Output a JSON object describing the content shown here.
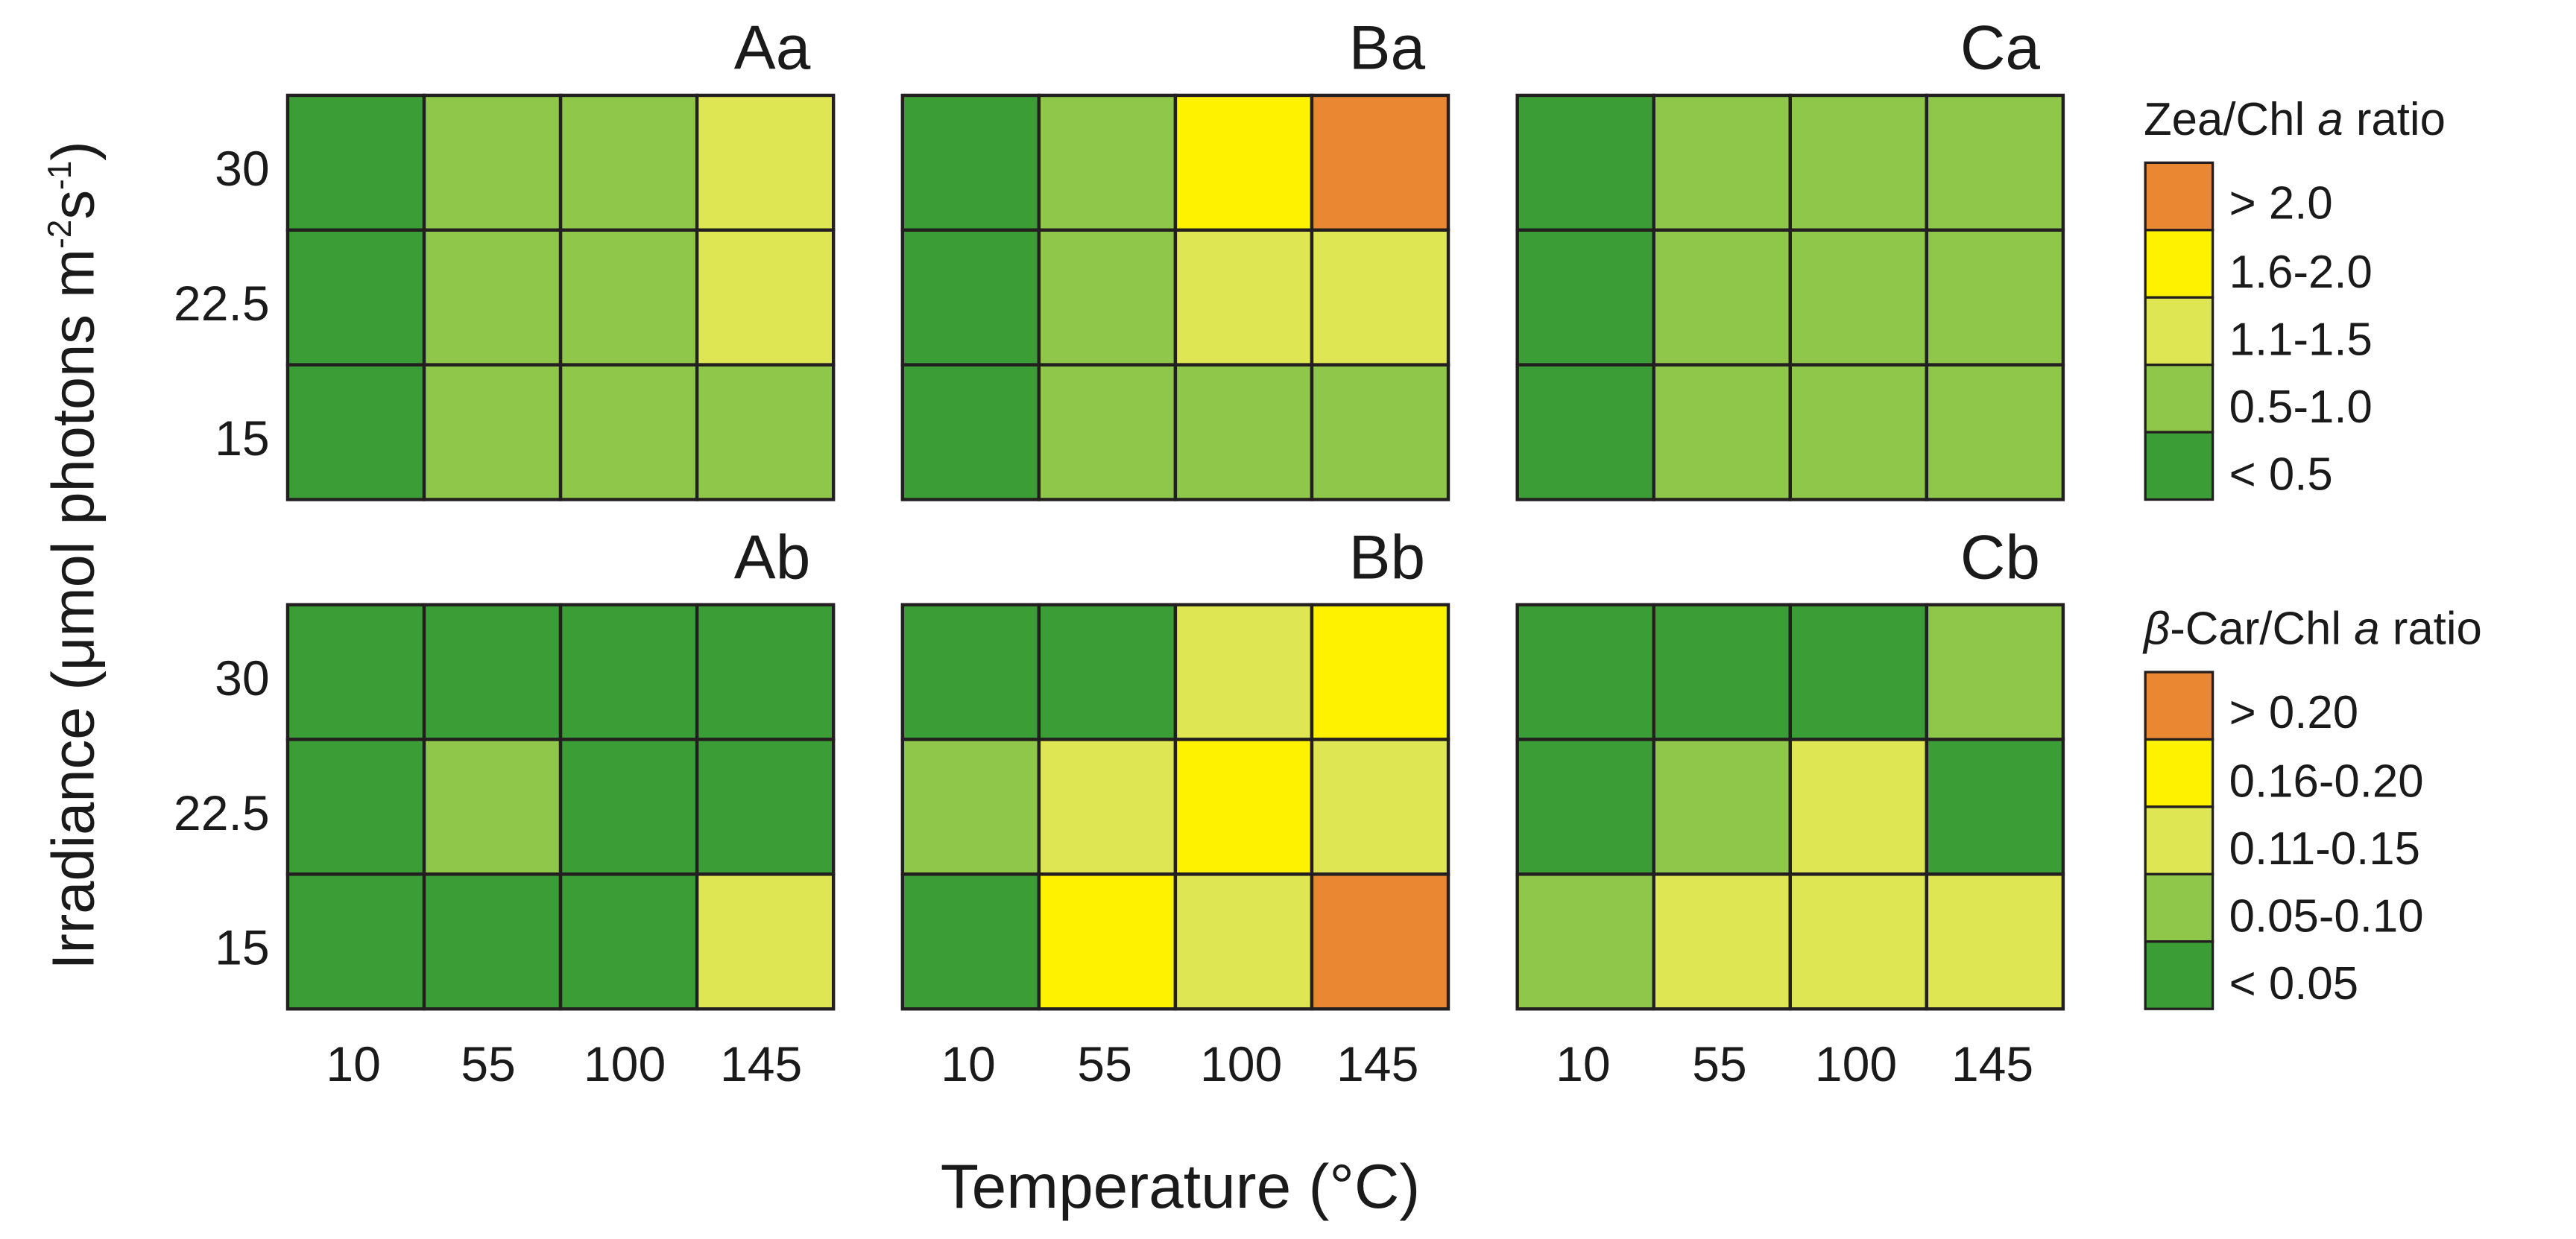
{
  "colors": {
    "level_0": "#3b9d35",
    "level_1": "#8fc74a",
    "level_2": "#dfe653",
    "level_3": "#fff200",
    "level_4": "#ea8732",
    "grid_line": "#231f20"
  },
  "chart_data": [
    {
      "type": "heatmap",
      "panel": "Aa",
      "title": "Aa",
      "x": [
        "10",
        "55",
        "100",
        "145"
      ],
      "y": [
        "30",
        "22.5",
        "15"
      ],
      "legend_group": "zea",
      "levels": [
        [
          0,
          1,
          1,
          2
        ],
        [
          0,
          1,
          1,
          2
        ],
        [
          0,
          1,
          1,
          1
        ]
      ]
    },
    {
      "type": "heatmap",
      "panel": "Ba",
      "title": "Ba",
      "x": [
        "10",
        "55",
        "100",
        "145"
      ],
      "y": [
        "30",
        "22.5",
        "15"
      ],
      "legend_group": "zea",
      "levels": [
        [
          0,
          1,
          3,
          4
        ],
        [
          0,
          1,
          2,
          2
        ],
        [
          0,
          1,
          1,
          1
        ]
      ]
    },
    {
      "type": "heatmap",
      "panel": "Ca",
      "title": "Ca",
      "x": [
        "10",
        "55",
        "100",
        "145"
      ],
      "y": [
        "30",
        "22.5",
        "15"
      ],
      "legend_group": "zea",
      "levels": [
        [
          0,
          1,
          1,
          1
        ],
        [
          0,
          1,
          1,
          1
        ],
        [
          0,
          1,
          1,
          1
        ]
      ]
    },
    {
      "type": "heatmap",
      "panel": "Ab",
      "title": "Ab",
      "x": [
        "10",
        "55",
        "100",
        "145"
      ],
      "y": [
        "30",
        "22.5",
        "15"
      ],
      "legend_group": "car",
      "levels": [
        [
          0,
          0,
          0,
          0
        ],
        [
          0,
          1,
          0,
          0
        ],
        [
          0,
          0,
          0,
          2
        ]
      ]
    },
    {
      "type": "heatmap",
      "panel": "Bb",
      "title": "Bb",
      "x": [
        "10",
        "55",
        "100",
        "145"
      ],
      "y": [
        "30",
        "22.5",
        "15"
      ],
      "legend_group": "car",
      "levels": [
        [
          0,
          0,
          2,
          3
        ],
        [
          1,
          2,
          3,
          2
        ],
        [
          0,
          3,
          2,
          4
        ]
      ]
    },
    {
      "type": "heatmap",
      "panel": "Cb",
      "title": "Cb",
      "x": [
        "10",
        "55",
        "100",
        "145"
      ],
      "y": [
        "30",
        "22.5",
        "15"
      ],
      "legend_group": "car",
      "levels": [
        [
          0,
          0,
          0,
          1
        ],
        [
          0,
          1,
          2,
          0
        ],
        [
          1,
          2,
          2,
          2
        ]
      ]
    }
  ],
  "axes": {
    "xlabel": "Temperature (°C)",
    "ylabel": "Irradiance (μmol photons m-2s-1)",
    "ylabel_main": "Irradiance (μmol photons m",
    "ylabel_sup1": "-2",
    "ylabel_s": "s",
    "ylabel_sup2": "-1",
    "ylabel_close": ")",
    "x_ticks": [
      "10",
      "55",
      "100",
      "145"
    ],
    "y_ticks": [
      "30",
      "22.5",
      "15"
    ]
  },
  "legends": {
    "zea": {
      "title": "Zea/Chl a ratio",
      "title_prefix": "Zea/Chl ",
      "title_italic": "a",
      "title_suffix": " ratio",
      "items": [
        "> 2.0",
        "1.6-2.0",
        "1.1-1.5",
        "0.5-1.0",
        "< 0.5"
      ]
    },
    "car": {
      "title": "β-Car/Chl a ratio",
      "title_greek": "β",
      "title_prefix": "-Car/Chl ",
      "title_italic": "a",
      "title_suffix": " ratio",
      "items": [
        "> 0.20",
        "0.16-0.20",
        "0.11-0.15",
        "0.05-0.10",
        "< 0.05"
      ]
    }
  }
}
